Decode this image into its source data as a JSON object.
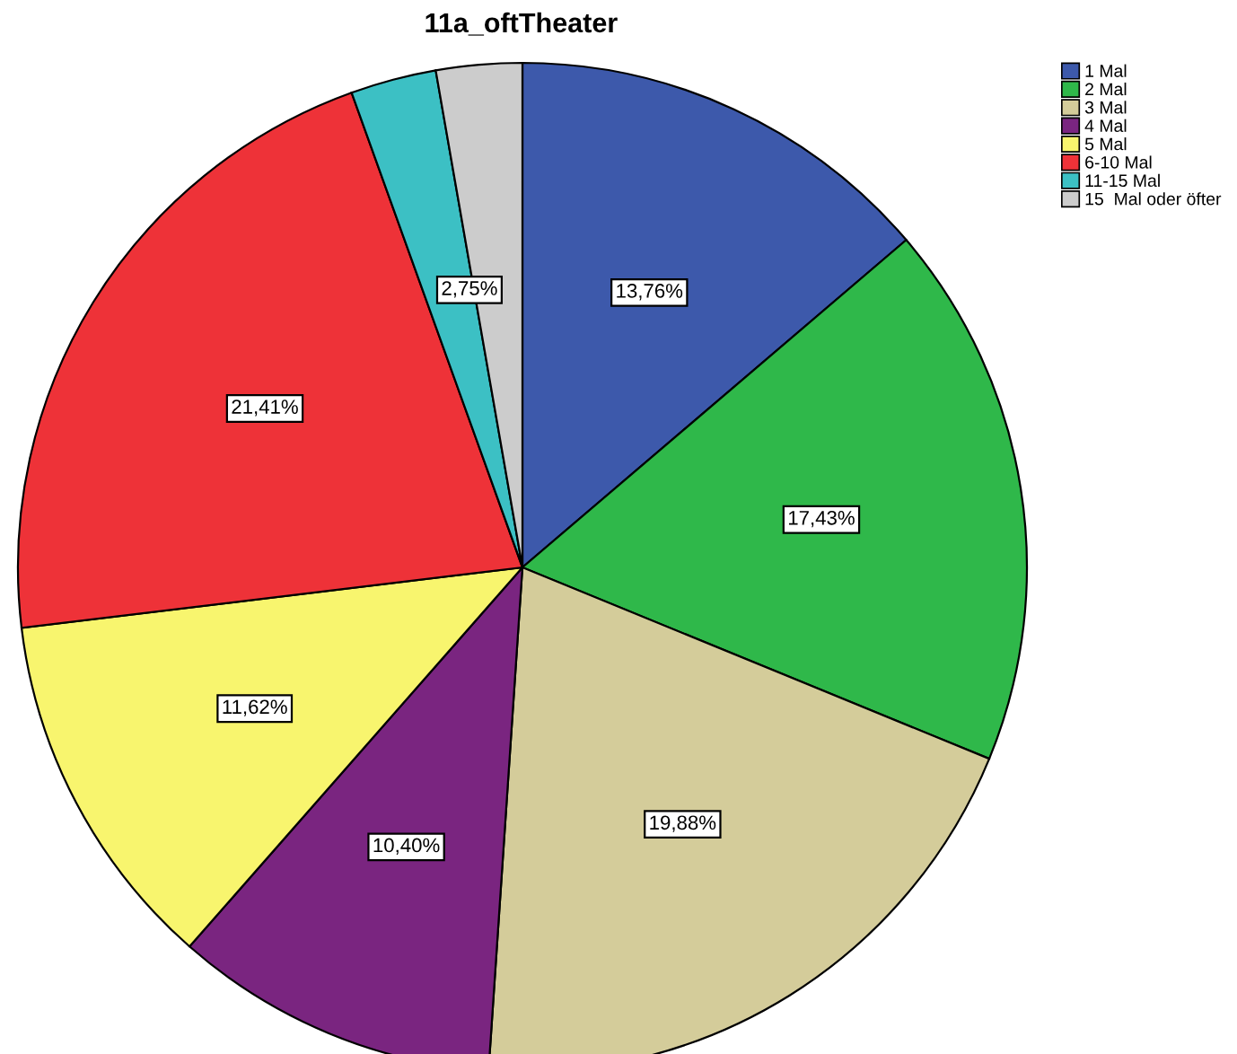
{
  "chart_data": {
    "type": "pie",
    "title": "11a_oftTheater",
    "categories": [
      "1 Mal",
      "2 Mal",
      "3 Mal",
      "4 Mal",
      "5 Mal",
      "6-10 Mal",
      "11-15 Mal",
      "15  Mal oder öfter"
    ],
    "values": [
      13.76,
      17.43,
      19.88,
      10.4,
      11.62,
      21.41,
      2.75,
      2.75
    ],
    "value_labels": [
      "13,76%",
      "17,43%",
      "19,88%",
      "10,40%",
      "11,62%",
      "21,41%",
      null,
      "2,75%"
    ],
    "colors": [
      "#3d59ab",
      "#2fb84a",
      "#d4cc9a",
      "#7a2580",
      "#f8f56e",
      "#ee3238",
      "#3cc0c4",
      "#cccccc"
    ],
    "legend": "top right"
  }
}
